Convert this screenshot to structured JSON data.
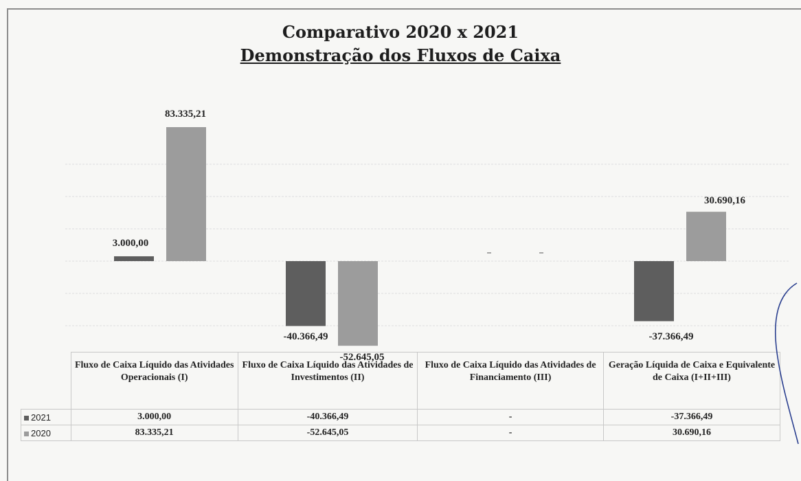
{
  "chart_data": {
    "type": "bar",
    "title": "Comparativo  2020 x 2021",
    "subtitle": "Demonstração  dos  Fluxos  de  Caixa",
    "categories": [
      "Fluxo de Caixa Líquido das Atividades Operacionais (I)",
      "Fluxo de Caixa Líquido das Atividades de Investimentos (II)",
      "Fluxo de Caixa Líquido das Atividades de Financiamento (III)",
      "Geração Líquida de Caixa e Equivalente de Caixa (I+II+III)"
    ],
    "series": [
      {
        "name": "2021",
        "color": "#5e5e5e",
        "values": [
          3000.0,
          -40366.49,
          0,
          -37366.49
        ],
        "labels": [
          "3.000,00",
          "-40.366,49",
          "-",
          "-37.366,49"
        ]
      },
      {
        "name": "2020",
        "color": "#9c9c9c",
        "values": [
          83335.21,
          -52645.05,
          0,
          30690.16
        ],
        "labels": [
          "83.335,21",
          "-52.645,05",
          "-",
          "30.690,16"
        ]
      }
    ],
    "ylim": [
      -60000,
      100000
    ],
    "grid": true,
    "legend": "data table (bottom)"
  }
}
